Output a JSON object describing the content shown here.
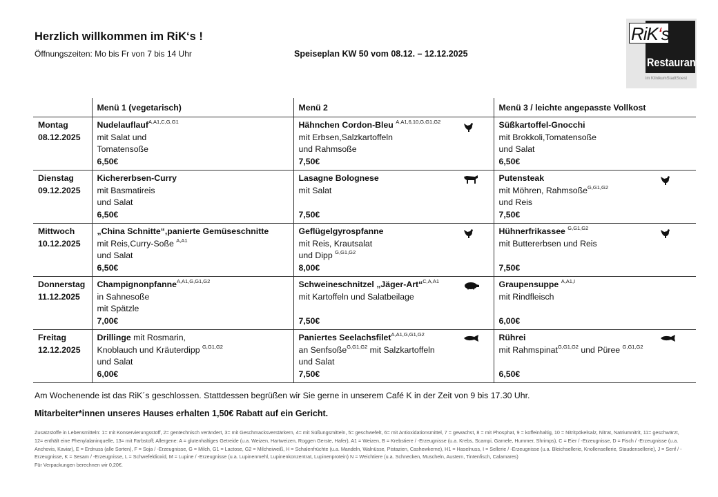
{
  "header": {
    "title": "Herzlich willkommen im RiK‘s !",
    "hours": "Öffnungszeiten: Mo bis Fr von 7 bis 14 Uhr",
    "plan": "Speiseplan KW 50 vom 08.12. – 12.12.2025",
    "logo": {
      "name": "RiK's",
      "subtitle": "Restaurant",
      "tagline": "im KlinikumStadtSoest",
      "accent": "#c0141c"
    }
  },
  "columns": [
    "",
    "Menü 1 (vegetarisch)",
    "Menü 2",
    "Menü 3 / leichte angepasste Vollkost"
  ],
  "days": [
    {
      "day": "Montag",
      "date": "08.12.2025",
      "menus": [
        {
          "lines": [
            [
              {
                "t": "Nudelauflauf",
                "s": "b"
              },
              {
                "t": "A,A1,C,G,G1",
                "s": "sup"
              }
            ],
            [
              {
                "t": "mit Salat und",
                "s": "n"
              }
            ],
            [
              {
                "t": "Tomatensoße",
                "s": "n"
              }
            ]
          ],
          "price": "6,50€",
          "icon": ""
        },
        {
          "lines": [
            [
              {
                "t": "Hähnchen Cordon-Bleu ",
                "s": "b"
              },
              {
                "t": "A,A1,6,10,G,G1,G2",
                "s": "sup"
              }
            ],
            [
              {
                "t": "mit Erbsen,Salzkartoffeln",
                "s": "n"
              }
            ],
            [
              {
                "t": "und Rahmsoße",
                "s": "n"
              }
            ]
          ],
          "price": "7,50€",
          "icon": "chicken-icon"
        },
        {
          "lines": [
            [
              {
                "t": "Süßkartoffel-Gnocchi",
                "s": "b"
              }
            ],
            [
              {
                "t": "mit Brokkoli,Tomatensoße",
                "s": "n"
              }
            ],
            [
              {
                "t": "und Salat",
                "s": "n"
              }
            ]
          ],
          "price": "6,50€",
          "icon": ""
        }
      ]
    },
    {
      "day": "Dienstag",
      "date": "09.12.2025",
      "menus": [
        {
          "lines": [
            [
              {
                "t": "Kichererbsen-Curry",
                "s": "b"
              }
            ],
            [
              {
                "t": "mit Basmatireis",
                "s": "n"
              }
            ],
            [
              {
                "t": "und Salat",
                "s": "n"
              }
            ]
          ],
          "price": "6,50€",
          "icon": ""
        },
        {
          "lines": [
            [
              {
                "t": "Lasagne Bolognese",
                "s": "b"
              }
            ],
            [
              {
                "t": "mit Salat",
                "s": "n"
              }
            ],
            []
          ],
          "price": "7,50€",
          "icon": "cow-icon"
        },
        {
          "lines": [
            [
              {
                "t": "Putensteak",
                "s": "b"
              }
            ],
            [
              {
                "t": "mit Möhren, Rahmsoße",
                "s": "n"
              },
              {
                "t": "G,G1,G2",
                "s": "sup"
              }
            ],
            [
              {
                "t": "und Reis",
                "s": "n"
              }
            ]
          ],
          "price": "7,50€",
          "icon": "chicken-icon"
        }
      ]
    },
    {
      "day": "Mittwoch",
      "date": "10.12.2025",
      "menus": [
        {
          "lines": [
            [
              {
                "t": "„China Schnitte“,panierte Gemüseschnitte",
                "s": "b"
              }
            ],
            [
              {
                "t": "mit Reis,Curry-Soße ",
                "s": "n"
              },
              {
                "t": "A,A1",
                "s": "sup"
              }
            ],
            [
              {
                "t": "und Salat",
                "s": "n"
              }
            ]
          ],
          "price": "6,50€",
          "icon": ""
        },
        {
          "lines": [
            [
              {
                "t": "Geflügelgyrospfanne",
                "s": "b"
              }
            ],
            [
              {
                "t": "mit Reis, Krautsalat",
                "s": "n"
              }
            ],
            [
              {
                "t": "und Dipp ",
                "s": "n"
              },
              {
                "t": "G,G1,G2",
                "s": "sup"
              }
            ]
          ],
          "price": "8,00€",
          "icon": "chicken-icon"
        },
        {
          "lines": [
            [
              {
                "t": "Hühnerfrikassee ",
                "s": "b"
              },
              {
                "t": "G,G1,G2",
                "s": "sup"
              }
            ],
            [
              {
                "t": "mit Buttererbsen und Reis",
                "s": "n"
              }
            ],
            []
          ],
          "price": "7,50€",
          "icon": "chicken-icon"
        }
      ]
    },
    {
      "day": "Donnerstag",
      "date": "11.12.2025",
      "menus": [
        {
          "lines": [
            [
              {
                "t": "Champignonpfanne",
                "s": "b"
              },
              {
                "t": "A,A1,G,G1,G2",
                "s": "sup"
              }
            ],
            [
              {
                "t": "in Sahnesoße",
                "s": "n"
              }
            ],
            [
              {
                "t": "mit Spätzle",
                "s": "n"
              }
            ]
          ],
          "price": "7,00€",
          "icon": ""
        },
        {
          "lines": [
            [
              {
                "t": "Schweineschnitzel „Jäger-Art“",
                "s": "b"
              },
              {
                "t": "C,A,A1",
                "s": "sup"
              }
            ],
            [
              {
                "t": "mit Kartoffeln und Salatbeilage",
                "s": "n"
              }
            ],
            []
          ],
          "price": "7,50€",
          "icon": "pig-icon"
        },
        {
          "lines": [
            [
              {
                "t": "Graupensuppe ",
                "s": "b"
              },
              {
                "t": "A,A1,I",
                "s": "sup"
              }
            ],
            [
              {
                "t": "mit Rindfleisch",
                "s": "n"
              }
            ],
            []
          ],
          "price": "6,00€",
          "icon": ""
        }
      ]
    },
    {
      "day": "Freitag",
      "date": "12.12.2025",
      "menus": [
        {
          "lines": [
            [
              {
                "t": "Drillinge",
                "s": "b"
              },
              {
                "t": " mit Rosmarin,",
                "s": "n"
              }
            ],
            [
              {
                "t": "Knoblauch und Kräuterdipp ",
                "s": "n"
              },
              {
                "t": "G,G1,G2",
                "s": "sup"
              }
            ],
            [
              {
                "t": "und Salat",
                "s": "n"
              }
            ]
          ],
          "price": "6,00€",
          "icon": ""
        },
        {
          "lines": [
            [
              {
                "t": "Paniertes Seelachsfilet",
                "s": "b"
              },
              {
                "t": "A,A1,G,G1,G2",
                "s": "sup"
              }
            ],
            [
              {
                "t": "an Senfsoße",
                "s": "n"
              },
              {
                "t": "G,G1,G2",
                "s": "sup"
              },
              {
                "t": " mit Salzkartoffeln",
                "s": "n"
              }
            ],
            [
              {
                "t": "und Salat",
                "s": "n"
              }
            ]
          ],
          "price": "7,50€",
          "icon": "fish-icon"
        },
        {
          "lines": [
            [
              {
                "t": "Rührei",
                "s": "b"
              }
            ],
            [
              {
                "t": "mit Rahmspinat",
                "s": "n"
              },
              {
                "t": "G,G1,G2",
                "s": "sup"
              },
              {
                "t": " und Püree ",
                "s": "n"
              },
              {
                "t": "G,G1,G2",
                "s": "sup"
              }
            ],
            []
          ],
          "price": "6,50€",
          "icon": "fish-icon"
        }
      ]
    }
  ],
  "footer": {
    "weekend": "Am Wochenende ist das RiK´s geschlossen. Stattdessen begrüßen wir Sie gerne in unserem Café K in der Zeit von 9 bis 17.30 Uhr.",
    "staff": "Mitarbeiter*innen unseres Hauses erhalten 1,50€ Rabatt auf ein Gericht.",
    "additives": "Zusatzstoffe in Lebensmitteln: 1= mit Konservierungsstoff, 2= gentechnisch verändert, 3= mit Geschmacksverstärkern, 4= mit Süßungsmitteln, 5= geschwefelt, 6= mit Antioxidationsmittel, 7 = gewachst, 8 = mit Phosphat, 9 = koffeinhaltig, 10 = Nitritpökelsalz, Nitrat, Natriumnitrit, 11= geschwärzt, 12= enthält eine Phenylalaninquelle, 13= mit Farbstoff; Allergene: A = glutenhaltiges Getreide (u.a. Weizen, Hartweizen, Roggen Gerste, Hafer), A1 = Weizen, B = Krebstiere / -Erzeugnisse (u.a. Krebs, Scampi, Garnele, Hummer, Shrimps), C = Eier / -Erzeugnisse, D = Fisch / -Erzeugnisse (u.a. Anchovis, Kaviar), E = Erdnuss (alle Sorten), F = Soja / -Erzeugnisse, G = Milch, G1 = Lactose, G2 = Milcheiweiß, H = Schalenfrüchte (u.a. Mandeln, Walnüsse, Pistazien, Cashewkerne), H1 = Haselnuss, I = Sellerie / -Erzeugnisse (u.a. Bleichsellerie, Knollensellerie, Staudensellerie), J = Senf / -Erzeugnisse, K = Sesam / -Erzeugnisse, L = Schwefeldioxid, M = Lupine / -Erzeugnisse (u.a. Lupinenmehl, Lupinenkonzentrat, Lupinenprotein) N = Weichtiere (u.a. Schnecken, Muscheln, Austern, Tintenfisch, Calamares)",
    "packaging": "Für Verpackungen berechnen wir 0,20€."
  }
}
